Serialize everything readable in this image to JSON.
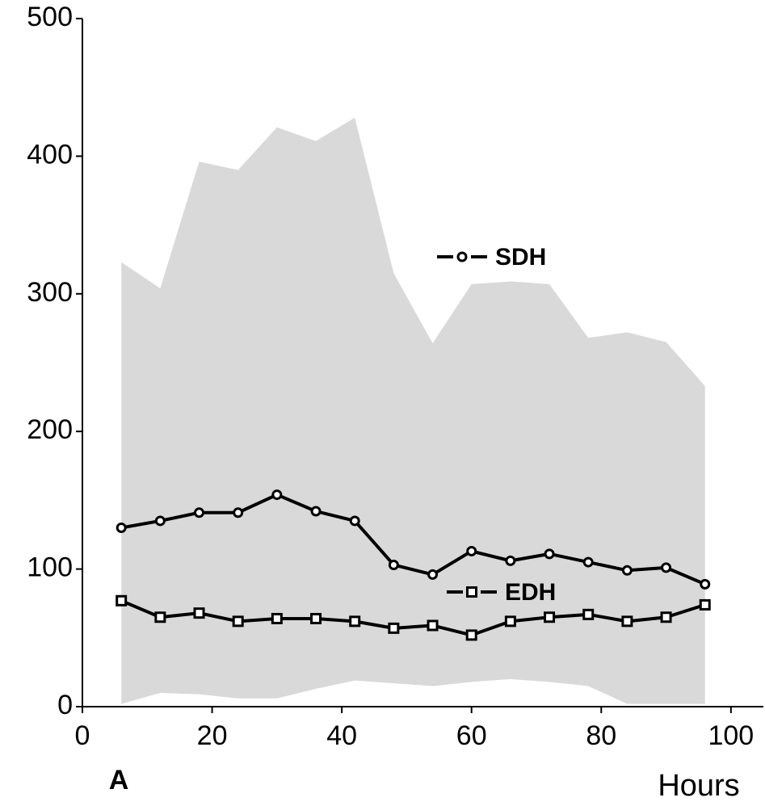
{
  "chart_data": {
    "type": "line",
    "panel_label": "A",
    "xlabel": "Hours",
    "x": [
      6,
      12,
      18,
      24,
      30,
      36,
      42,
      48,
      54,
      60,
      66,
      72,
      78,
      84,
      90,
      96
    ],
    "series": [
      {
        "name": "SDH",
        "color": "#000000",
        "marker": "circle",
        "values": [
          130,
          135,
          141,
          141,
          154,
          142,
          135,
          103,
          96,
          113,
          106,
          111,
          105,
          99,
          101,
          89
        ]
      },
      {
        "name": "EDH",
        "color": "#000000",
        "marker": "square",
        "values": [
          77,
          65,
          68,
          62,
          64,
          64,
          62,
          57,
          59,
          52,
          62,
          65,
          67,
          62,
          65,
          74
        ]
      }
    ],
    "band": {
      "color": "#d9d9d9",
      "upper": [
        323,
        304,
        396,
        390,
        421,
        411,
        428,
        315,
        264,
        307,
        309,
        307,
        268,
        272,
        265,
        233
      ],
      "lower": [
        2,
        10,
        9,
        6,
        6,
        13,
        19,
        17,
        15,
        18,
        20,
        18,
        15,
        2,
        2,
        2
      ]
    },
    "xlim": [
      0,
      105
    ],
    "ylim": [
      0,
      500
    ],
    "xticks": [
      0,
      20,
      40,
      60,
      80,
      100
    ],
    "yticks": [
      0,
      100,
      200,
      300,
      400,
      500
    ]
  }
}
